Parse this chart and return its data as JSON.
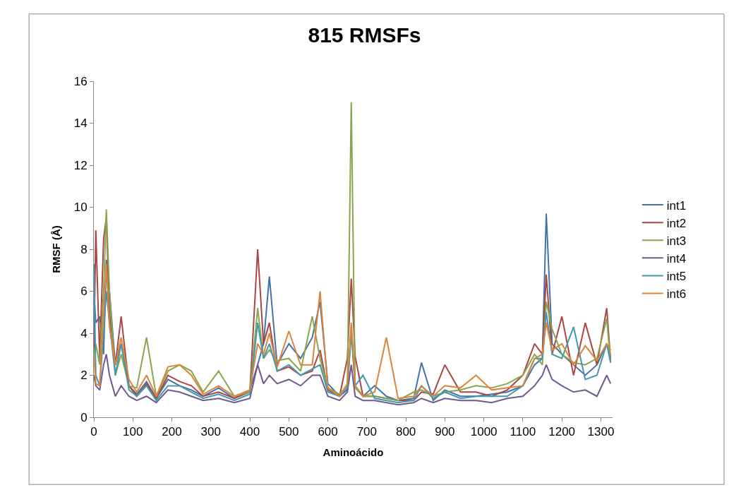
{
  "chart_data": {
    "type": "line",
    "title": "815 RMSFs",
    "xlabel": "Aminoácido",
    "ylabel": "RMSF (Å)",
    "x": [
      0,
      5,
      15,
      25,
      32,
      40,
      55,
      70,
      90,
      110,
      135,
      160,
      190,
      220,
      250,
      280,
      320,
      360,
      400,
      420,
      435,
      450,
      470,
      500,
      530,
      560,
      580,
      600,
      630,
      650,
      660,
      670,
      690,
      720,
      750,
      780,
      820,
      840,
      870,
      900,
      940,
      980,
      1020,
      1060,
      1100,
      1130,
      1150,
      1160,
      1175,
      1200,
      1230,
      1260,
      1290,
      1315,
      1325
    ],
    "xlim": [
      0,
      1330
    ],
    "xticks": [
      0,
      100,
      200,
      300,
      400,
      500,
      600,
      700,
      800,
      900,
      1000,
      1100,
      1200,
      1300
    ],
    "ylim": [
      0,
      16
    ],
    "yticks": [
      0,
      2,
      4,
      6,
      8,
      10,
      12,
      14,
      16
    ],
    "legend": "right",
    "marker": "none",
    "line_style": "solid",
    "series": [
      {
        "name": "int1",
        "color": "#4572a7",
        "values": [
          6,
          4.5,
          4.8,
          3,
          7.5,
          6,
          2.5,
          3.5,
          1.5,
          1.1,
          1.7,
          0.9,
          1.8,
          1.5,
          1.3,
          1.0,
          1.4,
          0.9,
          1.3,
          2.5,
          3.5,
          6.7,
          2.5,
          3.5,
          2.8,
          3.8,
          5.5,
          1.6,
          1.0,
          1.3,
          4.2,
          1.5,
          1.0,
          1.5,
          1.0,
          0.8,
          0.9,
          2.6,
          0.8,
          1.3,
          1.0,
          1.0,
          1.1,
          1.2,
          1.5,
          2.5,
          2.8,
          9.7,
          3.5,
          3.0,
          2.5,
          2.0,
          2.5,
          3.5,
          2.8
        ]
      },
      {
        "name": "int2",
        "color": "#aa4643",
        "values": [
          3,
          8.9,
          2.8,
          8.5,
          9.5,
          5,
          2.5,
          4.8,
          1.5,
          1.0,
          1.6,
          0.9,
          2.0,
          1.7,
          1.5,
          1.0,
          1.2,
          0.9,
          1.2,
          8.0,
          3.5,
          4.5,
          2.2,
          2.4,
          2.0,
          2.2,
          3.2,
          1.3,
          1.0,
          2.8,
          6.6,
          2.9,
          1.0,
          1.0,
          0.9,
          0.8,
          0.8,
          1.2,
          1.1,
          2.5,
          1.2,
          1.2,
          1.0,
          1.3,
          2.0,
          3.5,
          3.0,
          6.8,
          3.0,
          4.8,
          2.0,
          4.5,
          2.5,
          5.2,
          2.7
        ]
      },
      {
        "name": "int3",
        "color": "#89a54e",
        "values": [
          3,
          3.5,
          2.5,
          6,
          9.9,
          6,
          2.0,
          3.0,
          1.5,
          1.4,
          3.8,
          1.0,
          2.2,
          2.5,
          2.2,
          1.2,
          2.2,
          1.0,
          1.2,
          5.2,
          2.8,
          3.2,
          2.7,
          2.8,
          2.2,
          4.8,
          2.8,
          1.4,
          1.1,
          1.5,
          15.0,
          1.4,
          1.0,
          1.0,
          0.9,
          0.8,
          1.2,
          1.3,
          1.0,
          1.2,
          1.3,
          1.5,
          1.4,
          1.6,
          2.0,
          3.0,
          2.5,
          5.5,
          4.2,
          3.0,
          2.6,
          2.5,
          2.8,
          4.7,
          2.6
        ]
      },
      {
        "name": "int4",
        "color": "#71588f",
        "values": [
          2,
          1.5,
          1.3,
          2.5,
          3,
          2,
          1.0,
          1.5,
          1.0,
          0.8,
          1.0,
          0.7,
          1.3,
          1.2,
          1.0,
          0.8,
          0.9,
          0.7,
          0.9,
          2.5,
          1.6,
          2.0,
          1.6,
          1.8,
          1.5,
          2.0,
          2.0,
          1.0,
          0.8,
          1.2,
          2.5,
          1.0,
          0.8,
          0.8,
          0.7,
          0.6,
          0.7,
          0.9,
          0.7,
          0.9,
          0.8,
          0.8,
          0.7,
          0.9,
          1.0,
          1.5,
          2.0,
          2.5,
          1.8,
          1.5,
          1.2,
          1.3,
          1.0,
          2.0,
          1.6
        ]
      },
      {
        "name": "int5",
        "color": "#4198af",
        "values": [
          7.3,
          2,
          1.5,
          4,
          6,
          4.5,
          2.0,
          3.5,
          1.3,
          1.0,
          1.5,
          0.8,
          1.5,
          1.5,
          1.2,
          0.9,
          1.1,
          0.8,
          1.1,
          4.5,
          2.8,
          3.5,
          2.2,
          2.5,
          2.0,
          2.3,
          2.5,
          1.2,
          1.0,
          1.4,
          4.0,
          1.5,
          2.0,
          0.9,
          0.8,
          0.7,
          0.8,
          1.5,
          0.9,
          1.2,
          0.9,
          1.0,
          1.0,
          1.0,
          1.5,
          2.8,
          2.8,
          5.0,
          3.0,
          2.8,
          4.3,
          1.8,
          2.0,
          3.5,
          2.6
        ]
      },
      {
        "name": "int6",
        "color": "#db843d",
        "values": [
          3,
          1.6,
          1.5,
          5,
          7.3,
          4.3,
          2.5,
          3.8,
          1.8,
          1.2,
          2.0,
          1.0,
          2.4,
          2.5,
          2.0,
          1.1,
          1.5,
          1.0,
          1.3,
          3.5,
          3.0,
          4.0,
          2.4,
          4.1,
          2.5,
          2.5,
          6.0,
          1.4,
          1.0,
          1.6,
          4.5,
          1.5,
          1.0,
          1.2,
          3.8,
          0.9,
          1.0,
          1.5,
          1.0,
          1.5,
          1.4,
          2.0,
          1.3,
          1.4,
          1.5,
          2.8,
          3.0,
          4.5,
          3.2,
          3.5,
          2.5,
          3.4,
          2.7,
          3.5,
          3.2
        ]
      }
    ]
  }
}
